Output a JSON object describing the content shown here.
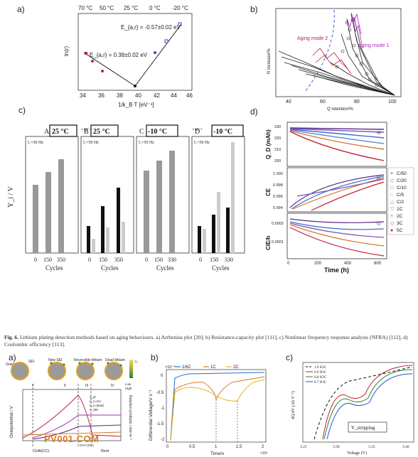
{
  "labels": {
    "a": "a)",
    "b": "b)",
    "c": "c)",
    "d": "d)",
    "a2": "a)",
    "b2": "b)",
    "c2": "c)"
  },
  "caption": {
    "fig": "Fig. 6.",
    "text": "Lithium plating detection methods based on aging behaviours. a) Arrhenius plot [20], b) Resistance-capacity plot [111], c) Nonlinear frequency response analysis (NFRA) [112], d) Coulombic efficiency [113]."
  },
  "watermark": "PV001.COM",
  "panel_a": {
    "top_ticks": [
      "70 °C",
      "50 °C",
      "25 °C",
      "0 °C",
      "-20 °C"
    ],
    "ylabel": "ln(r)",
    "xlabel": "1/k_B T  [eV⁻¹]",
    "x_ticks": [
      "34",
      "36",
      "38",
      "40",
      "42",
      "44",
      "46"
    ],
    "ann1": "E_{a,r} = -0.57±0.02 eV",
    "ann2": "E_{a,r} = 0.38±0.02 eV"
  },
  "panel_b": {
    "ylabel": "R increase/%",
    "xlabel": "Q retention/%",
    "x_ticks": [
      "40",
      "60",
      "80",
      "100"
    ],
    "mode2": "Aging mode 2",
    "mode1": "Aging mode 1"
  },
  "panel_c": {
    "subpanels": [
      {
        "letter": "A",
        "temp": "25 °C",
        "scale": "",
        "freq": "f₁=50 Hz",
        "x": [
          "0",
          "150",
          "350"
        ]
      },
      {
        "letter": "B",
        "temp": "25 °C",
        "scale": "×10⁻²",
        "freq": "f₁=50 Hz",
        "x": [
          "0",
          "150",
          "350"
        ]
      },
      {
        "letter": "C",
        "temp": "-10 °C",
        "scale": "",
        "freq": "f₁=50 Hz",
        "x": [
          "0",
          "150",
          "330"
        ]
      },
      {
        "letter": "D",
        "temp": "-10 °C",
        "scale": "×10⁻³",
        "freq": "f₁=50 Hz",
        "x": [
          "0",
          "150",
          "330"
        ]
      }
    ],
    "ylabel": "Y_i / V",
    "xlabel": "Cycles"
  },
  "panel_d": {
    "ylabel_a": "Q_D (mAh)",
    "ylabel_b": "CE",
    "ylabel_c": "CIE/h",
    "xlabel": "Time (h)",
    "sub": [
      "a)",
      "b)",
      "c)"
    ],
    "ticks_a": [
      "230",
      "220",
      "210",
      "200"
    ],
    "ticks_b": [
      "1.000",
      "0.998",
      "0.996",
      "0.994"
    ],
    "ticks_c": [
      "0.0002",
      "0.0001"
    ],
    "x_ticks": [
      "0",
      "200",
      "400",
      "600"
    ],
    "legend": [
      {
        "sym": "+",
        "label": "C/50",
        "color": "#5b2a86"
      },
      {
        "sym": "◇",
        "label": "C/20",
        "color": "#7a4fb0"
      },
      {
        "sym": "□",
        "label": "C/10",
        "color": "#3b6fd0"
      },
      {
        "sym": "○",
        "label": "C/5",
        "color": "#6a8fd8"
      },
      {
        "sym": "△",
        "label": "C/2",
        "color": "#4aa0c8"
      },
      {
        "sym": "▽",
        "label": "1C",
        "color": "#d47a2a"
      },
      {
        "sym": "×",
        "label": "2C",
        "color": "#888888"
      },
      {
        "sym": "◇",
        "label": "3C",
        "color": "#c23a3a"
      },
      {
        "sym": "●",
        "label": "5C",
        "color": "#c0213a"
      }
    ]
  },
  "panel_a2": {
    "ylabel_left": "Overpotential / V",
    "ylabel_right": "Reaction products / mol·m⁻³",
    "top_labels": [
      "Graphite",
      "SEI",
      "New SEI",
      "Reversible lithium",
      "Dead lithium"
    ],
    "stages": [
      "I",
      "II",
      "III",
      "IV"
    ],
    "bottom": [
      "CHA(CC)",
      "CHA (CV)",
      "Rest"
    ],
    "legend": [
      "η_pl",
      "n_Li,rev",
      "n_Li,dead",
      "n_SEI"
    ],
    "colorbar": [
      "Li",
      "Low",
      "High"
    ]
  },
  "panel_b2": {
    "ylabel": "Differential Voltage/V s⁻¹",
    "xlabel": "Time/s",
    "scale": "×10⁻⁵",
    "xscale": "×10⁴",
    "legend": [
      "1/6C",
      "1C",
      "2C"
    ],
    "legend_colors": [
      "#2a6fd6",
      "#d47a2a",
      "#e8b020"
    ],
    "y_ticks": [
      "0",
      "-0.5",
      "-1",
      "-1.5",
      "-2"
    ],
    "x_ticks": [
      "0",
      "0.5",
      "1",
      "1.5",
      "2"
    ]
  },
  "panel_c2": {
    "ylabel": "dQ/dV (Ah V⁻¹)",
    "xlabel": "Voltage (V)",
    "legend": [
      "1.0 SOC",
      "0.9 SOC",
      "0.8 SOC",
      "0.7 SOC"
    ],
    "legend_colors": [
      "#111111",
      "#c0213a",
      "#1f8a2a",
      "#2a4fd6"
    ],
    "x_ticks": [
      "3.25",
      "3.30",
      "3.35",
      "3.40"
    ],
    "box": "V_stripping"
  }
}
